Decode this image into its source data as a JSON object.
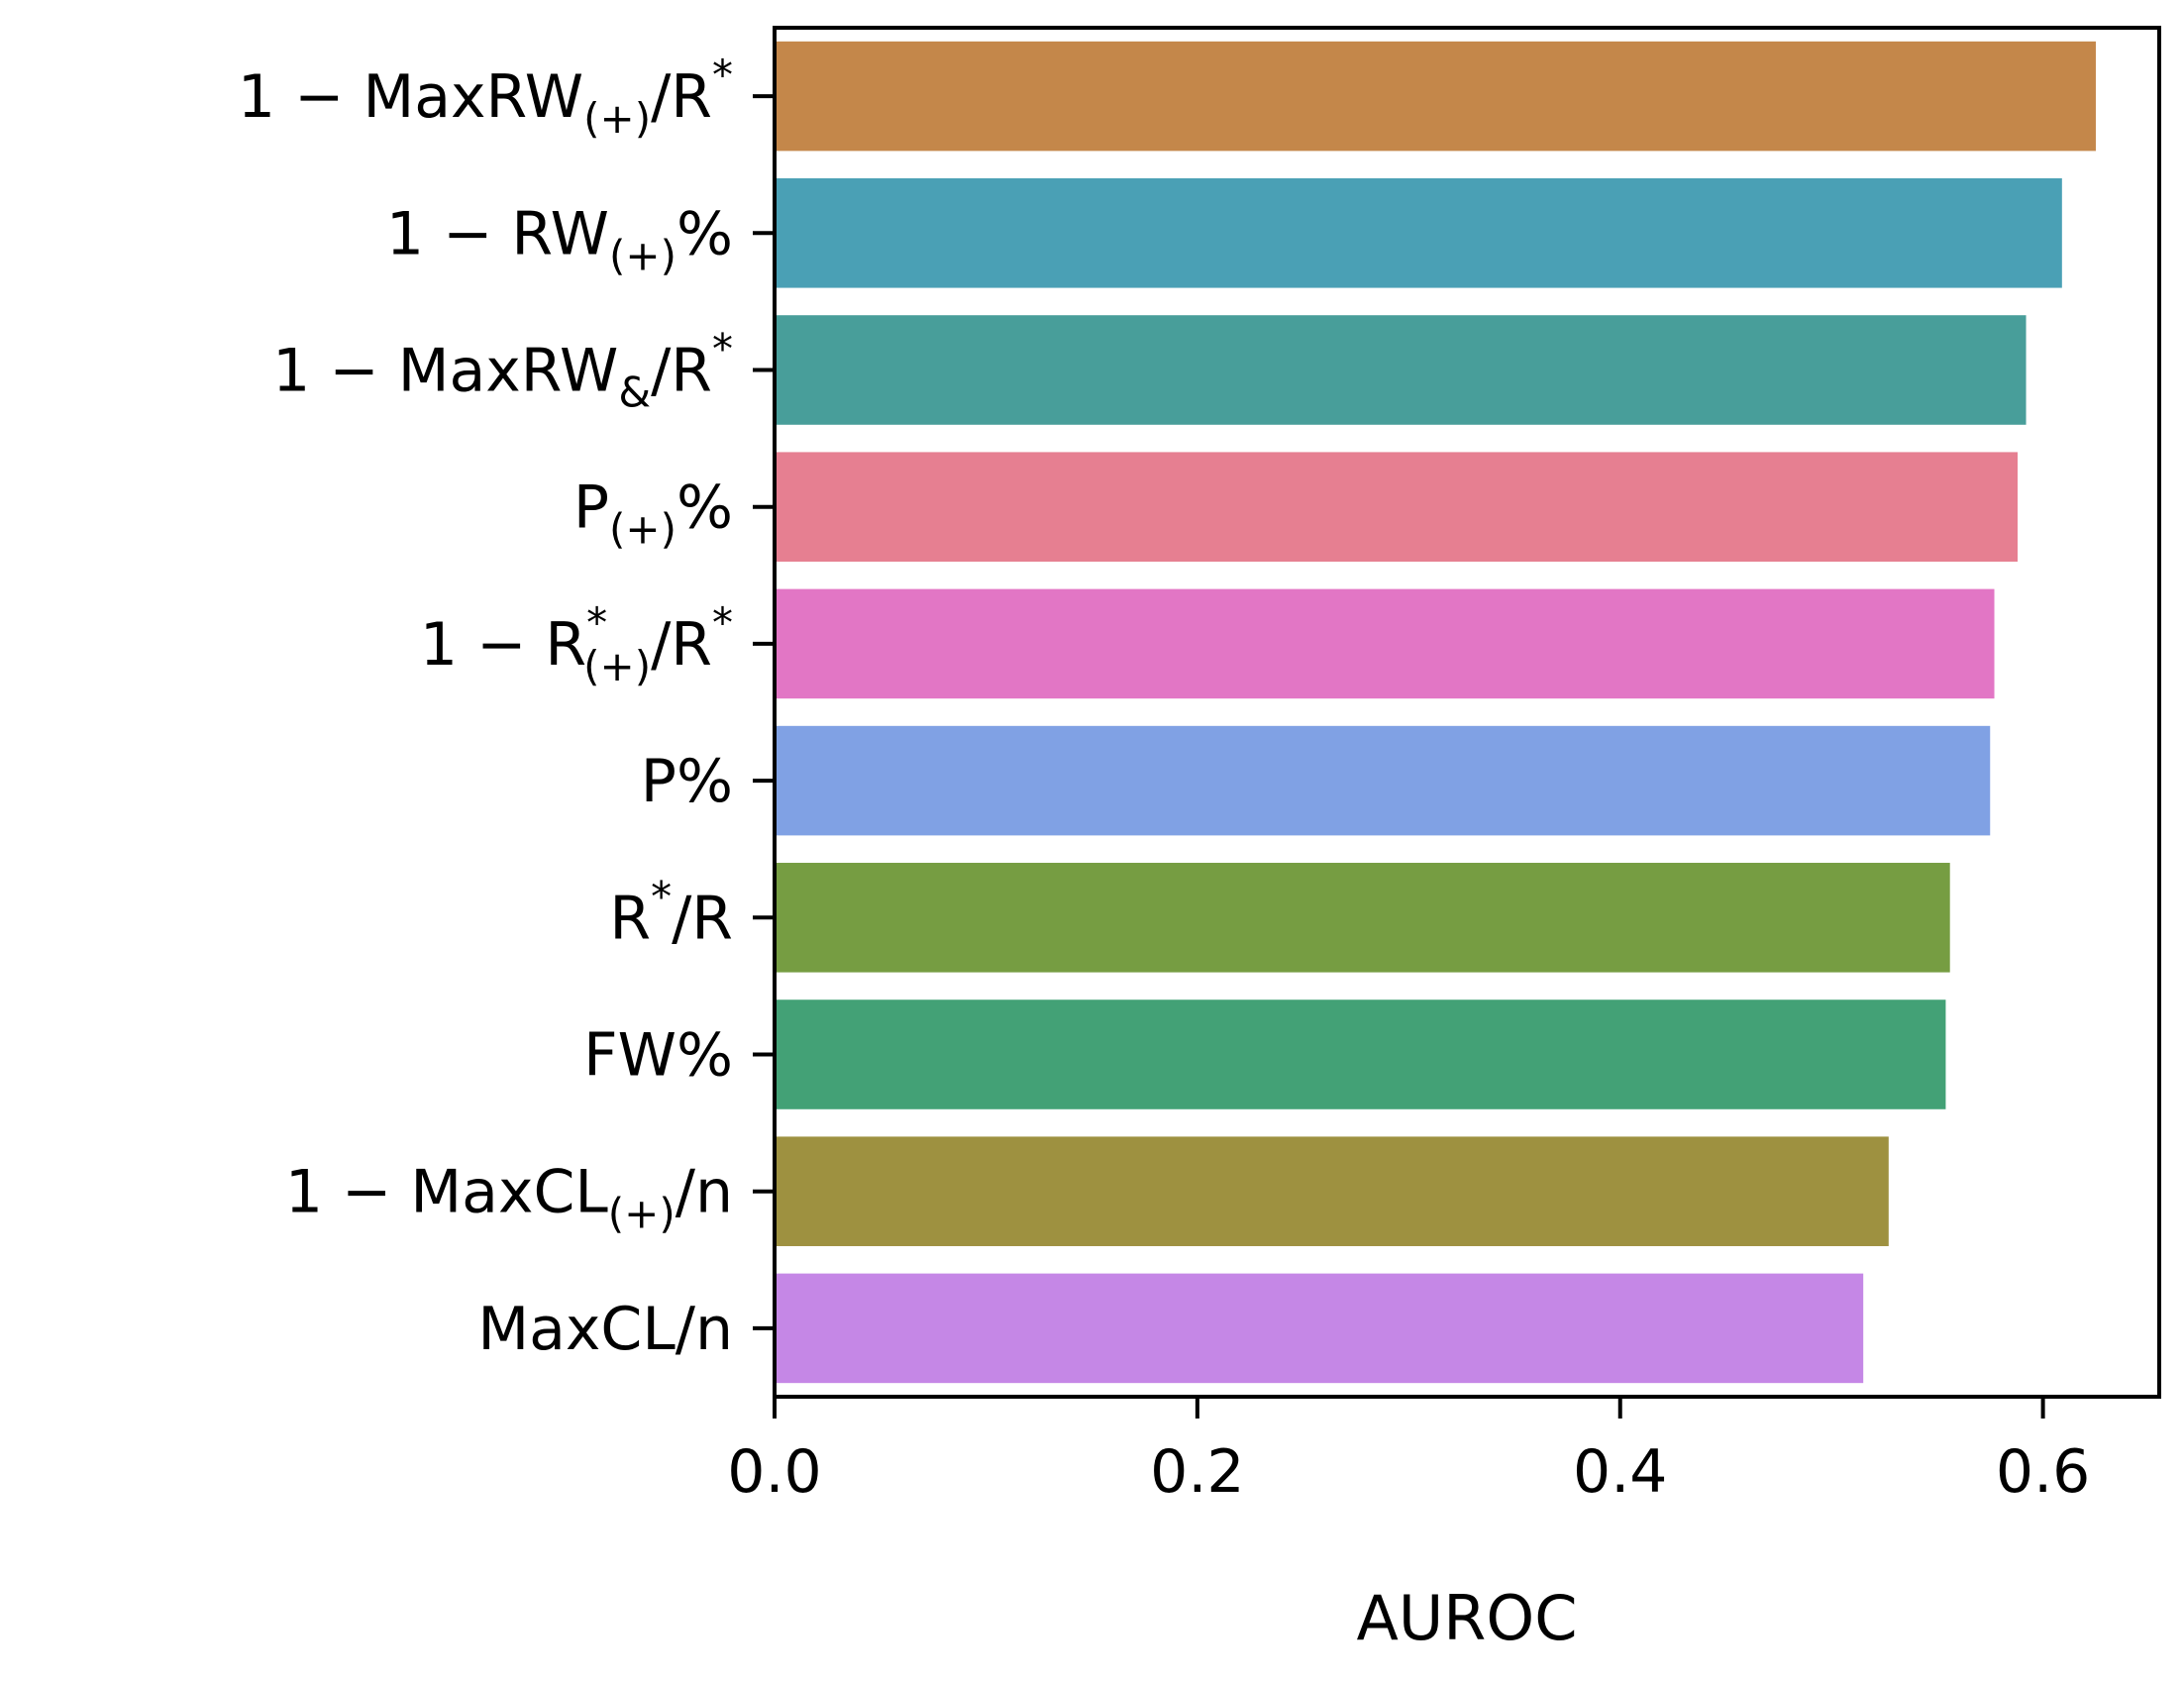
{
  "chart_data": {
    "type": "bar",
    "orientation": "horizontal",
    "xlabel": "AUROC",
    "ylabel": "",
    "xlim": [
      0,
      0.655
    ],
    "xticks": [
      0.0,
      0.2,
      0.4,
      0.6
    ],
    "xtick_labels": [
      "0.0",
      "0.2",
      "0.4",
      "0.6"
    ],
    "grid": false,
    "categories": [
      {
        "label": [
          {
            "t": "1 − MaxRW",
            "s": "n"
          },
          {
            "t": "(+)",
            "s": "sub"
          },
          {
            "t": "/R",
            "s": "n"
          },
          {
            "t": "*",
            "s": "sup"
          }
        ],
        "value": 0.625,
        "color": "#c4874a"
      },
      {
        "label": [
          {
            "t": "1 − RW",
            "s": "n"
          },
          {
            "t": "(+)",
            "s": "sub"
          },
          {
            "t": "%",
            "s": "n"
          }
        ],
        "value": 0.609,
        "color": "#4aa0b5"
      },
      {
        "label": [
          {
            "t": "1 − MaxRW",
            "s": "n"
          },
          {
            "t": "&",
            "s": "sub"
          },
          {
            "t": "/R",
            "s": "n"
          },
          {
            "t": "*",
            "s": "sup"
          }
        ],
        "value": 0.592,
        "color": "#489e9a"
      },
      {
        "label": [
          {
            "t": "P",
            "s": "n"
          },
          {
            "t": "(+)",
            "s": "sub"
          },
          {
            "t": "%",
            "s": "n"
          }
        ],
        "value": 0.588,
        "color": "#e67f91"
      },
      {
        "label": [
          {
            "t": "1 − R",
            "s": "n"
          },
          {
            "t": "*",
            "s": "sup"
          },
          {
            "t": "(+)",
            "s": "sub2"
          },
          {
            "t": "/R",
            "s": "n"
          },
          {
            "t": "*",
            "s": "sup"
          }
        ],
        "value": 0.577,
        "color": "#e276c5"
      },
      {
        "label": [
          {
            "t": "P%",
            "s": "n"
          }
        ],
        "value": 0.575,
        "color": "#80a1e4"
      },
      {
        "label": [
          {
            "t": "R",
            "s": "n"
          },
          {
            "t": "*",
            "s": "sup"
          },
          {
            "t": "/R",
            "s": "n"
          }
        ],
        "value": 0.556,
        "color": "#769d42"
      },
      {
        "label": [
          {
            "t": "FW%",
            "s": "n"
          }
        ],
        "value": 0.554,
        "color": "#43a176"
      },
      {
        "label": [
          {
            "t": "1 − MaxCL",
            "s": "n"
          },
          {
            "t": "(+)",
            "s": "sub"
          },
          {
            "t": "/n",
            "s": "n"
          }
        ],
        "value": 0.527,
        "color": "#9e9140"
      },
      {
        "label": [
          {
            "t": "MaxCL/n",
            "s": "n"
          }
        ],
        "value": 0.515,
        "color": "#c587e6"
      }
    ]
  }
}
